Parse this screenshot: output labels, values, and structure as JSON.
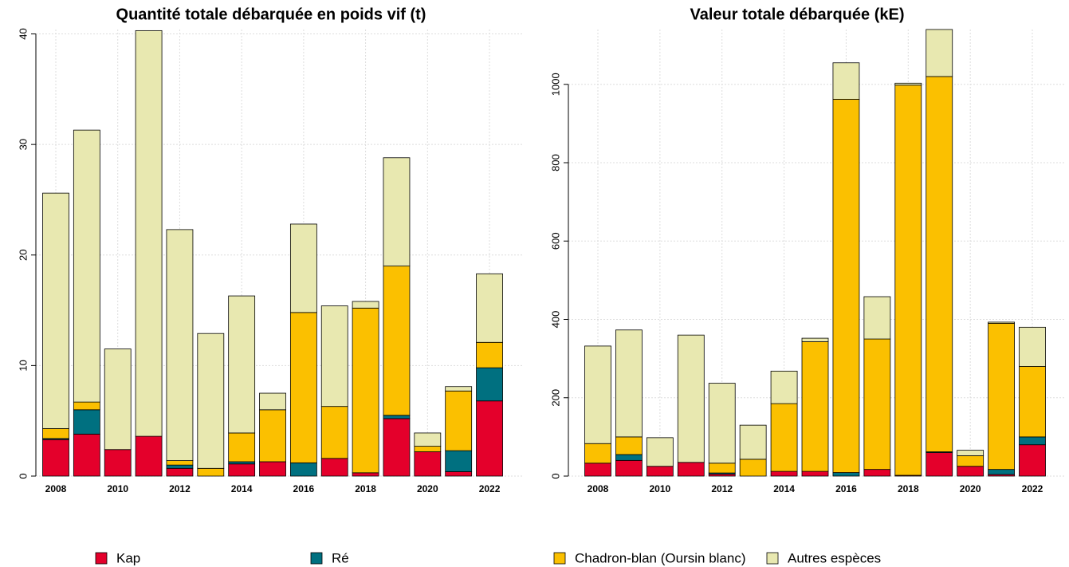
{
  "chart_data": [
    {
      "type": "bar",
      "stacked": true,
      "title": "Quantité totale débarquée en poids vif (t)",
      "categories": [
        "2008",
        null,
        "2010",
        null,
        "2012",
        null,
        "2014",
        null,
        "2016",
        null,
        "2018",
        null,
        "2020",
        null,
        "2022"
      ],
      "series": [
        {
          "name": "Kap",
          "color": "#e4002b",
          "values": [
            3.3,
            3.8,
            2.4,
            3.6,
            0.7,
            0,
            1.1,
            1.3,
            0,
            1.6,
            0.3,
            5.2,
            2.2,
            0.4,
            6.8
          ]
        },
        {
          "name": "Ré",
          "color": "#007080",
          "values": [
            0.1,
            2.2,
            0,
            0,
            0.3,
            0,
            0.2,
            0,
            1.2,
            0,
            0,
            0.3,
            0,
            1.9,
            3.0
          ]
        },
        {
          "name": "Chadron-blan (Oursin blanc)",
          "color": "#fbc000",
          "values": [
            0.9,
            0.7,
            0,
            0,
            0.4,
            0.7,
            2.6,
            4.7,
            13.6,
            4.7,
            14.9,
            13.5,
            0.5,
            5.4,
            2.3
          ]
        },
        {
          "name": "Autres espèces",
          "color": "#e8e8b0",
          "values": [
            21.3,
            24.6,
            9.1,
            36.7,
            20.9,
            12.2,
            12.4,
            1.5,
            8.0,
            9.1,
            0.6,
            9.8,
            1.2,
            0.4,
            6.2
          ]
        }
      ],
      "ylim": [
        0,
        40.4
      ],
      "yticks": [
        0,
        10,
        20,
        30,
        40
      ],
      "grid": true
    },
    {
      "type": "bar",
      "stacked": true,
      "title": "Valeur totale débarquée (kE)",
      "categories": [
        "2008",
        null,
        "2010",
        null,
        "2012",
        null,
        "2014",
        null,
        "2016",
        null,
        "2018",
        null,
        "2020",
        null,
        "2022"
      ],
      "series": [
        {
          "name": "Kap",
          "color": "#e4002b",
          "values": [
            33,
            40,
            25,
            35,
            5,
            0,
            12,
            12,
            0,
            17,
            2,
            60,
            25,
            4,
            80
          ]
        },
        {
          "name": "Ré",
          "color": "#007080",
          "values": [
            0,
            15,
            0,
            0,
            3,
            0,
            0,
            0,
            9,
            0,
            0,
            2,
            0,
            13,
            20
          ]
        },
        {
          "name": "Chadron-blan (Oursin blanc)",
          "color": "#fbc000",
          "values": [
            50,
            45,
            0,
            0,
            25,
            43,
            173,
            331,
            953,
            333,
            996,
            958,
            27,
            373,
            180
          ]
        },
        {
          "name": "Autres espèces",
          "color": "#e8e8b0",
          "values": [
            249,
            273,
            73,
            325,
            204,
            87,
            83,
            9,
            93,
            108,
            5,
            120,
            14,
            3,
            100
          ]
        }
      ],
      "ylim": [
        0,
        1140
      ],
      "yticks": [
        0,
        200,
        400,
        600,
        800,
        1000
      ],
      "grid": true
    }
  ]
}
